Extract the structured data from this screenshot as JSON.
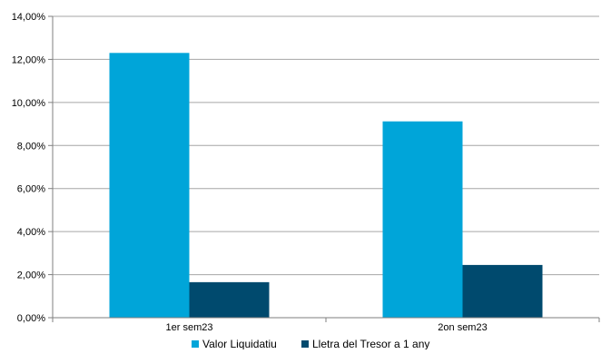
{
  "chart_data": {
    "type": "bar",
    "categories": [
      "1er sem23",
      "2on sem23"
    ],
    "series": [
      {
        "name": "Valor Liquidatiu",
        "values": [
          12.3,
          9.12
        ],
        "color": "#00a5d9"
      },
      {
        "name": "Lletra del Tresor a 1 any",
        "values": [
          1.65,
          2.45
        ],
        "color": "#004a6e"
      }
    ],
    "y_ticks": [
      "0,00%",
      "2,00%",
      "4,00%",
      "6,00%",
      "8,00%",
      "10,00%",
      "12,00%",
      "14,00%"
    ],
    "ylim": [
      0,
      14
    ],
    "grid": true,
    "legend_position": "bottom"
  }
}
